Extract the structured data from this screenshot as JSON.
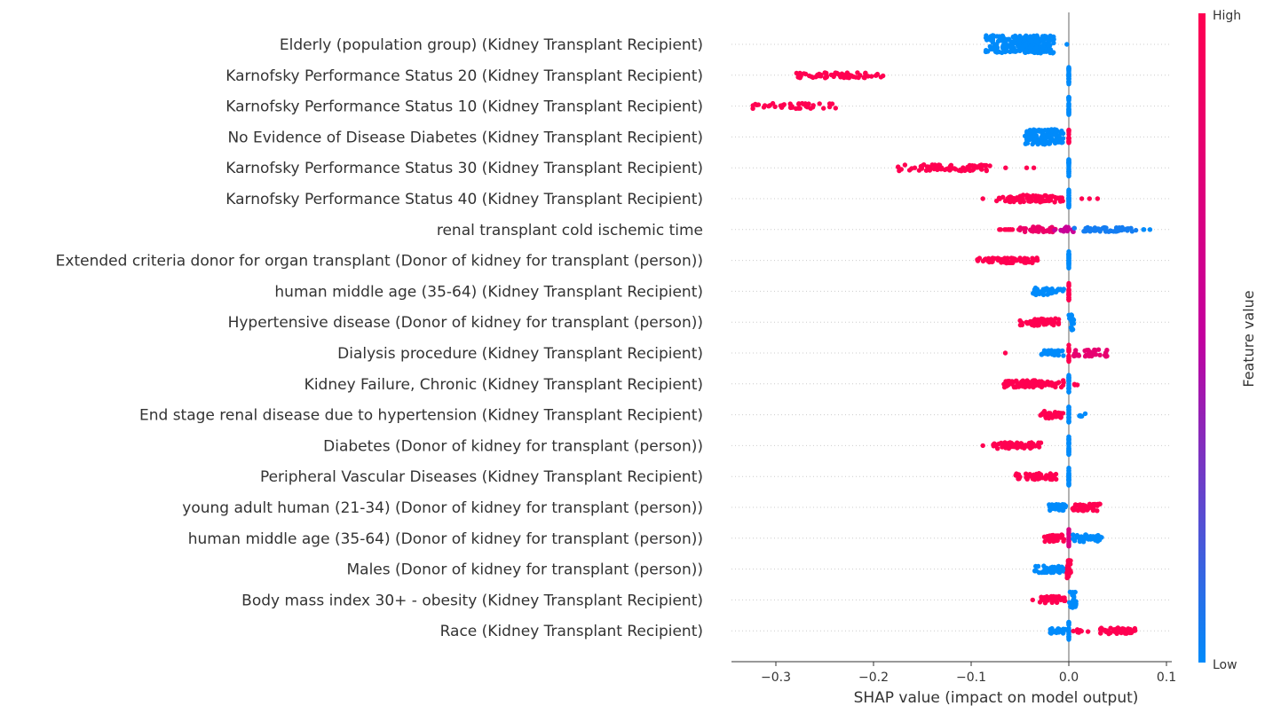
{
  "chart_data": {
    "type": "scatter",
    "xlabel": "SHAP value (impact on model output)",
    "xticks": [
      "−0.3",
      "−0.2",
      "−0.1",
      "0.0",
      "0.1"
    ],
    "xtick_values": [
      -0.3,
      -0.2,
      -0.1,
      0.0,
      0.1
    ],
    "xlim": [
      -0.345,
      0.105
    ],
    "colorbar": {
      "title": "Feature value",
      "high": "High",
      "low": "Low",
      "high_color": "#ff0051",
      "mid_color": "#c3009f",
      "low_color": "#008bfb"
    },
    "features": [
      {
        "name": "Elderly (population group)  (Kidney Transplant Recipient)",
        "groups": [
          {
            "from": -0.085,
            "to": -0.015,
            "level": 0.0,
            "n": 260,
            "spread": 1.0
          },
          {
            "from": -0.002,
            "to": -0.002,
            "level": 0.0,
            "n": 1,
            "spread": 0
          }
        ]
      },
      {
        "name": "Karnofsky Performance Status 20  (Kidney Transplant Recipient)",
        "groups": [
          {
            "from": -0.28,
            "to": -0.19,
            "level": 1.0,
            "n": 70,
            "spread": 0.3
          },
          {
            "from": 0.0,
            "to": 0.0,
            "level": 0.0,
            "n": 40,
            "spread": 1.0
          }
        ]
      },
      {
        "name": "Karnofsky Performance Status 10  (Kidney Transplant Recipient)",
        "groups": [
          {
            "from": -0.325,
            "to": -0.235,
            "level": 1.0,
            "n": 45,
            "spread": 0.3
          },
          {
            "from": 0.0,
            "to": 0.0,
            "level": 0.0,
            "n": 40,
            "spread": 1.0
          }
        ]
      },
      {
        "name": "No Evidence of Disease Diabetes (Kidney Transplant Recipient)",
        "groups": [
          {
            "from": -0.045,
            "to": -0.005,
            "level": 0.0,
            "n": 140,
            "spread": 0.85
          },
          {
            "from": 0.0,
            "to": 0.0,
            "level": 1.0,
            "n": 20,
            "spread": 0.8
          }
        ]
      },
      {
        "name": "Karnofsky Performance Status 30  (Kidney Transplant Recipient)",
        "groups": [
          {
            "from": -0.175,
            "to": -0.08,
            "level": 1.0,
            "n": 80,
            "spread": 0.35
          },
          {
            "from": -0.07,
            "to": -0.035,
            "level": 1.0,
            "n": 3,
            "spread": 0
          },
          {
            "from": 0.0,
            "to": 0.0,
            "level": 0.0,
            "n": 40,
            "spread": 1.0
          }
        ]
      },
      {
        "name": "Karnofsky Performance Status 40  (Kidney Transplant Recipient)",
        "groups": [
          {
            "from": -0.075,
            "to": -0.005,
            "level": 1.0,
            "n": 90,
            "spread": 0.4
          },
          {
            "from": -0.088,
            "to": -0.088,
            "level": 1.0,
            "n": 1,
            "spread": 0
          },
          {
            "from": 0.01,
            "to": 0.03,
            "level": 1.0,
            "n": 3,
            "spread": 0
          },
          {
            "from": 0.0,
            "to": 0.0,
            "level": 0.0,
            "n": 40,
            "spread": 1.0
          }
        ]
      },
      {
        "name": "renal transplant cold ischemic time ",
        "groups": [
          {
            "from": -0.075,
            "to": -0.05,
            "level": 1.0,
            "n": 10,
            "spread": 0
          },
          {
            "from": -0.05,
            "to": -0.01,
            "level": 0.85,
            "n": 40,
            "spread": 0.3
          },
          {
            "from": -0.015,
            "to": 0.005,
            "level": 0.55,
            "n": 15,
            "spread": 0.3
          },
          {
            "from": 0.005,
            "to": 0.07,
            "level": 0.05,
            "n": 50,
            "spread": 0.25
          },
          {
            "from": 0.075,
            "to": 0.085,
            "level": 0.0,
            "n": 3,
            "spread": 0
          }
        ]
      },
      {
        "name": "Extended criteria donor for organ transplant  (Donor of kidney for transplant (person))",
        "groups": [
          {
            "from": -0.095,
            "to": -0.03,
            "level": 1.0,
            "n": 70,
            "spread": 0.3
          },
          {
            "from": 0.0,
            "to": 0.0,
            "level": 0.0,
            "n": 40,
            "spread": 1.0
          }
        ]
      },
      {
        "name": "human middle age (35-64)  (Kidney Transplant Recipient)",
        "groups": [
          {
            "from": -0.037,
            "to": -0.005,
            "level": 0.0,
            "n": 50,
            "spread": 0.4
          },
          {
            "from": 0.0,
            "to": 0.0,
            "level": 1.0,
            "n": 30,
            "spread": 1.0
          }
        ]
      },
      {
        "name": "Hypertensive disease  (Donor of kidney for transplant (person))",
        "groups": [
          {
            "from": -0.05,
            "to": -0.01,
            "level": 1.0,
            "n": 60,
            "spread": 0.4
          },
          {
            "from": 0.0,
            "to": 0.007,
            "level": 0.0,
            "n": 20,
            "spread": 0.9
          }
        ]
      },
      {
        "name": "Dialysis procedure  (Kidney Transplant Recipient)",
        "groups": [
          {
            "from": -0.065,
            "to": -0.065,
            "level": 1.0,
            "n": 1,
            "spread": 0
          },
          {
            "from": -0.03,
            "to": -0.003,
            "level": 0.0,
            "n": 40,
            "spread": 0.3
          },
          {
            "from": 0.0,
            "to": 0.0,
            "level": 1.0,
            "n": 20,
            "spread": 1.0
          },
          {
            "from": 0.005,
            "to": 0.04,
            "level": 0.8,
            "n": 40,
            "spread": 0.4
          }
        ]
      },
      {
        "name": "Kidney Failure, Chronic  (Kidney Transplant Recipient)",
        "groups": [
          {
            "from": -0.067,
            "to": -0.005,
            "level": 1.0,
            "n": 90,
            "spread": 0.4
          },
          {
            "from": 0.0,
            "to": 0.0,
            "level": 0.0,
            "n": 30,
            "spread": 1.0
          },
          {
            "from": 0.005,
            "to": 0.013,
            "level": 1.0,
            "n": 3,
            "spread": 0.3
          }
        ]
      },
      {
        "name": "End stage renal disease due to hypertension  (Kidney Transplant Recipient)",
        "groups": [
          {
            "from": -0.03,
            "to": -0.005,
            "level": 1.0,
            "n": 40,
            "spread": 0.4
          },
          {
            "from": 0.0,
            "to": 0.0,
            "level": 0.0,
            "n": 30,
            "spread": 1.0
          },
          {
            "from": 0.004,
            "to": 0.02,
            "level": 0.0,
            "n": 5,
            "spread": 0.2
          }
        ]
      },
      {
        "name": "Diabetes  (Donor of kidney for transplant (person))",
        "groups": [
          {
            "from": -0.088,
            "to": -0.088,
            "level": 1.0,
            "n": 1,
            "spread": 0
          },
          {
            "from": -0.078,
            "to": -0.026,
            "level": 1.0,
            "n": 60,
            "spread": 0.35
          },
          {
            "from": 0.0,
            "to": 0.0,
            "level": 0.0,
            "n": 40,
            "spread": 1.0
          }
        ]
      },
      {
        "name": "Peripheral Vascular Diseases  (Kidney Transplant Recipient)",
        "groups": [
          {
            "from": -0.055,
            "to": -0.012,
            "level": 1.0,
            "n": 60,
            "spread": 0.35
          },
          {
            "from": 0.0,
            "to": 0.0,
            "level": 0.0,
            "n": 40,
            "spread": 1.0
          }
        ]
      },
      {
        "name": "young adult human (21-34)  (Donor of kidney for transplant (person))",
        "groups": [
          {
            "from": -0.022,
            "to": -0.002,
            "level": 0.0,
            "n": 30,
            "spread": 0.35
          },
          {
            "from": 0.002,
            "to": 0.033,
            "level": 1.0,
            "n": 60,
            "spread": 0.4
          }
        ]
      },
      {
        "name": "human middle age (35-64)  (Donor of kidney for transplant (person))",
        "groups": [
          {
            "from": -0.025,
            "to": -0.005,
            "level": 1.0,
            "n": 40,
            "spread": 0.4
          },
          {
            "from": 0.0,
            "to": 0.0,
            "level": 0.7,
            "n": 20,
            "spread": 1.0
          },
          {
            "from": 0.004,
            "to": 0.034,
            "level": 0.0,
            "n": 40,
            "spread": 0.4
          }
        ]
      },
      {
        "name": "Males  (Donor of kidney for transplant (person))",
        "groups": [
          {
            "from": -0.035,
            "to": -0.003,
            "level": 0.0,
            "n": 50,
            "spread": 0.4
          },
          {
            "from": -0.002,
            "to": 0.002,
            "level": 1.0,
            "n": 40,
            "spread": 1.0
          }
        ]
      },
      {
        "name": "Body mass index 30+ - obesity  (Kidney Transplant Recipient)",
        "groups": [
          {
            "from": -0.037,
            "to": -0.037,
            "level": 1.0,
            "n": 1,
            "spread": 0
          },
          {
            "from": -0.03,
            "to": -0.003,
            "level": 1.0,
            "n": 40,
            "spread": 0.4
          },
          {
            "from": 0.0,
            "to": 0.008,
            "level": 0.0,
            "n": 30,
            "spread": 1.0
          }
        ]
      },
      {
        "name": "Race  (Kidney Transplant Recipient)",
        "groups": [
          {
            "from": -0.02,
            "to": -0.003,
            "level": 0.0,
            "n": 20,
            "spread": 0.3
          },
          {
            "from": 0.0,
            "to": 0.0,
            "level": 0.0,
            "n": 30,
            "spread": 1.0
          },
          {
            "from": 0.004,
            "to": 0.02,
            "level": 1.0,
            "n": 8,
            "spread": 0.2
          },
          {
            "from": 0.03,
            "to": 0.068,
            "level": 1.0,
            "n": 60,
            "spread": 0.35
          }
        ]
      }
    ]
  }
}
